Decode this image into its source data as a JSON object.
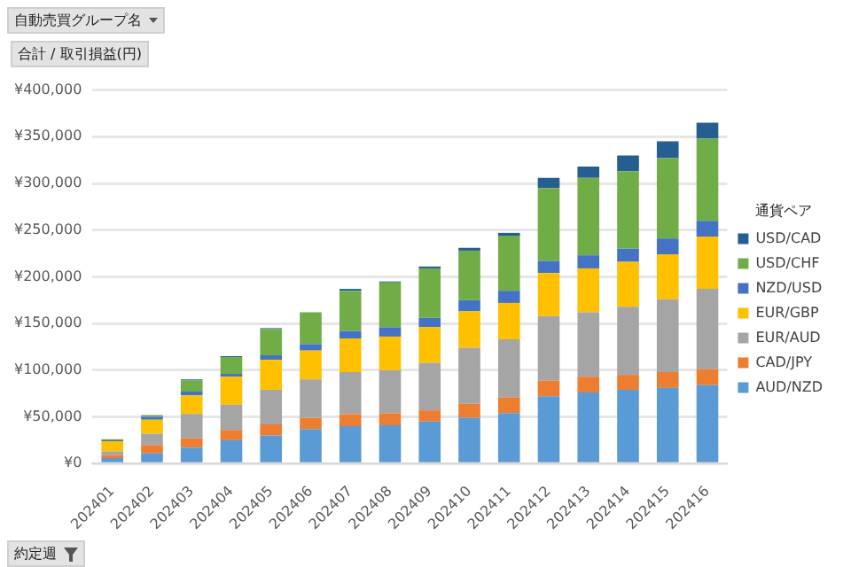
{
  "chart_data": {
    "type": "bar",
    "stacked": true,
    "ylabel": "合計 / 取引損益(円)",
    "legend_title": "通貨ペア",
    "legend": "right",
    "grid": "y",
    "annotations": [
      "自動売買グループ名",
      "約定週"
    ],
    "categories": [
      "202401",
      "202402",
      "202403",
      "202404",
      "202405",
      "202406",
      "202407",
      "202408",
      "202409",
      "202410",
      "202411",
      "202412",
      "202413",
      "202414",
      "202415",
      "202416"
    ],
    "series": [
      {
        "name": "AUD/NZD",
        "color": "#5b9bd5",
        "values": [
          6000,
          11000,
          17000,
          25000,
          30000,
          37000,
          40000,
          41000,
          45000,
          49000,
          54000,
          72000,
          76000,
          79000,
          81000,
          84000
        ]
      },
      {
        "name": "CAD/JPY",
        "color": "#ed7d31",
        "values": [
          3000,
          9000,
          10000,
          11000,
          12000,
          12000,
          13000,
          13000,
          12000,
          15000,
          17000,
          17000,
          17000,
          16000,
          17000,
          17000
        ]
      },
      {
        "name": "EUR/AUD",
        "color": "#a5a5a5",
        "values": [
          4000,
          12000,
          26000,
          27000,
          37000,
          41000,
          45000,
          46000,
          51000,
          60000,
          62000,
          69000,
          69000,
          73000,
          78000,
          86000
        ]
      },
      {
        "name": "EUR/GBP",
        "color": "#ffc000",
        "values": [
          11000,
          15000,
          20000,
          30000,
          32000,
          31000,
          36000,
          36000,
          38000,
          39000,
          39000,
          46000,
          47000,
          48000,
          48000,
          56000
        ]
      },
      {
        "name": "NZD/USD",
        "color": "#4472c4",
        "values": [
          1000,
          3000,
          4000,
          3000,
          5000,
          7000,
          8000,
          10000,
          10000,
          12000,
          13000,
          13000,
          14000,
          14000,
          17000,
          17000
        ]
      },
      {
        "name": "USD/CHF",
        "color": "#70ad47",
        "values": [
          1000,
          2000,
          12000,
          18000,
          28000,
          34000,
          43000,
          48000,
          53000,
          53000,
          59000,
          78000,
          83000,
          83000,
          86000,
          88000
        ]
      },
      {
        "name": "USD/CAD",
        "color": "#255e91",
        "values": [
          null,
          null,
          1000,
          1000,
          1000,
          null,
          2000,
          1000,
          2000,
          3000,
          3000,
          11000,
          12000,
          17000,
          18000,
          17000
        ]
      }
    ],
    "ylim": [
      0,
      400000
    ],
    "yticks": [
      {
        "value": 0,
        "label": "¥0"
      },
      {
        "value": 50000,
        "label": "¥50,000"
      },
      {
        "value": 100000,
        "label": "¥100,000"
      },
      {
        "value": 150000,
        "label": "¥150,000"
      },
      {
        "value": 200000,
        "label": "¥200,000"
      },
      {
        "value": 250000,
        "label": "¥250,000"
      },
      {
        "value": 300000,
        "label": "¥300,000"
      },
      {
        "value": 350000,
        "label": "¥350,000"
      },
      {
        "value": 400000,
        "label": "¥400,000"
      }
    ]
  }
}
